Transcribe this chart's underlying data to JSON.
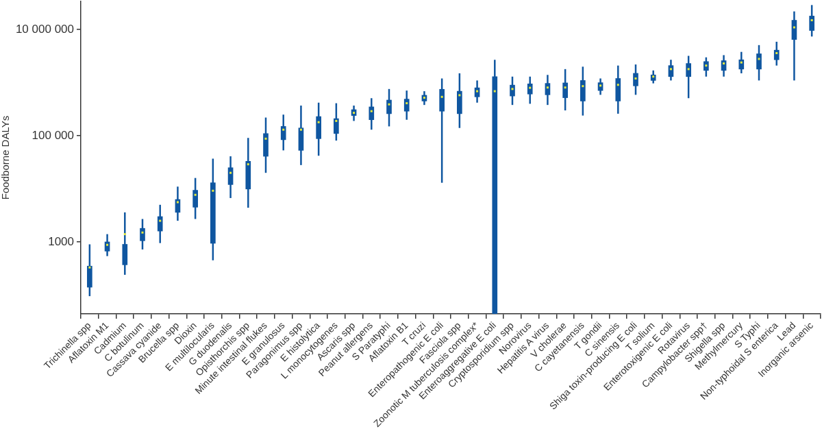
{
  "chart_data": {
    "type": "box",
    "ylabel": "Foodborne DALYs",
    "categories": [
      "Trichinella spp",
      "Aflatoxin M1",
      "Cadmium",
      "C botulinum",
      "Cassava cyanide",
      "Brucella spp",
      "Dioxin",
      "E multilocularis",
      "G duodenalis",
      "Opisthorchis spp",
      "Minute intestinal flukes",
      "E granulosus",
      "Paragonimus spp",
      "E histolytica",
      "L monocytogenes",
      "Ascaris spp",
      "Peanut allergens",
      "S Paratyphi",
      "Aflatoxin B1",
      "T cruzi",
      "Enteropathogenic E coli",
      "Fasciola spp",
      "Zoonotic M tuberculosis complex*",
      "Enteroaggregative E coli",
      "Cryptosporidium spp",
      "Norovirus",
      "Hepatitis A virus",
      "V cholerae",
      "C cayetanensis",
      "T gondii",
      "C sinensis",
      "Shiga toxin-producing E coli",
      "T solium",
      "Enterotoxigenic E coli",
      "Rotavirus",
      "Campylobacter spp†",
      "Shigella spp",
      "Methylmercury",
      "S Typhi",
      "Non-typhoidal S enterica",
      "Lead",
      "Inorganic arsenic"
    ],
    "series": [
      {
        "color": "#0f56a0",
        "boxes": [
          {
            "low": 95,
            "q1": 140,
            "median": 330,
            "q3": 350,
            "high": 900
          },
          {
            "low": 540,
            "q1": 670,
            "median": 880,
            "q3": 1000,
            "high": 1400
          },
          {
            "low": 240,
            "q1": 370,
            "median": 1400,
            "q3": 900,
            "high": 3600
          },
          {
            "low": 720,
            "q1": 1050,
            "median": 1500,
            "q3": 1800,
            "high": 2700
          },
          {
            "low": 950,
            "q1": 1600,
            "median": 2500,
            "q3": 3000,
            "high": 5000
          },
          {
            "low": 2500,
            "q1": 3600,
            "median": 5600,
            "q3": 6300,
            "high": 11000
          },
          {
            "low": 2700,
            "q1": 4500,
            "median": 7700,
            "q3": 9400,
            "high": 16000
          },
          {
            "low": 450,
            "q1": 940,
            "median": 9200,
            "q3": 13000,
            "high": 37000
          },
          {
            "low": 6700,
            "q1": 12000,
            "median": 20000,
            "q3": 25000,
            "high": 41000
          },
          {
            "low": 4400,
            "q1": 9900,
            "median": 29000,
            "q3": 33000,
            "high": 91000
          },
          {
            "low": 20000,
            "q1": 41000,
            "median": 88000,
            "q3": 110000,
            "high": 220000
          },
          {
            "low": 53000,
            "q1": 84000,
            "median": 130000,
            "q3": 150000,
            "high": 250000
          },
          {
            "low": 28000,
            "q1": 53000,
            "median": 130000,
            "q3": 140000,
            "high": 370000
          },
          {
            "low": 42000,
            "q1": 88000,
            "median": 180000,
            "q3": 230000,
            "high": 420000
          },
          {
            "low": 81000,
            "q1": 110000,
            "median": 190000,
            "q3": 210000,
            "high": 410000
          },
          {
            "low": 190000,
            "q1": 240000,
            "median": 270000,
            "q3": 310000,
            "high": 370000
          },
          {
            "low": 130000,
            "q1": 200000,
            "median": 290000,
            "q3": 350000,
            "high": 510000
          },
          {
            "low": 150000,
            "q1": 260000,
            "median": 390000,
            "q3": 470000,
            "high": 760000
          },
          {
            "low": 200000,
            "q1": 290000,
            "median": 410000,
            "q3": 490000,
            "high": 710000
          },
          {
            "low": 380000,
            "q1": 450000,
            "median": 520000,
            "q3": 580000,
            "high": 690000
          },
          {
            "low": 13000,
            "q1": 290000,
            "median": 540000,
            "q3": 750000,
            "high": 1200000
          },
          {
            "low": 140000,
            "q1": 260000,
            "median": 580000,
            "q3": 690000,
            "high": 1500000
          },
          {
            "low": 420000,
            "q1": 540000,
            "median": 690000,
            "q3": 800000,
            "high": 1100000
          },
          {
            "low": 44,
            "q1": 44,
            "median": 690000,
            "q3": 1300000,
            "high": 2700000
          },
          {
            "low": 380000,
            "q1": 560000,
            "median": 760000,
            "q3": 900000,
            "high": 1300000
          },
          {
            "low": 400000,
            "q1": 610000,
            "median": 800000,
            "q3": 950000,
            "high": 1300000
          },
          {
            "low": 380000,
            "q1": 590000,
            "median": 810000,
            "q3": 970000,
            "high": 1400000
          },
          {
            "low": 300000,
            "q1": 520000,
            "median": 810000,
            "q3": 990000,
            "high": 1800000
          },
          {
            "low": 240000,
            "q1": 450000,
            "median": 860000,
            "q3": 1100000,
            "high": 2000000
          },
          {
            "low": 590000,
            "q1": 710000,
            "median": 880000,
            "q3": 1000000,
            "high": 1200000
          },
          {
            "low": 260000,
            "q1": 450000,
            "median": 910000,
            "q3": 1200000,
            "high": 2100000
          },
          {
            "low": 590000,
            "q1": 870000,
            "median": 1200000,
            "q3": 1500000,
            "high": 2200000
          },
          {
            "low": 970000,
            "q1": 1100000,
            "median": 1300000,
            "q3": 1400000,
            "high": 1700000
          },
          {
            "low": 1100000,
            "q1": 1300000,
            "median": 1800000,
            "q3": 2100000,
            "high": 2700000
          },
          {
            "low": 510000,
            "q1": 1300000,
            "median": 1800000,
            "q3": 2300000,
            "high": 3200000
          },
          {
            "low": 1300000,
            "q1": 1700000,
            "median": 2100000,
            "q3": 2500000,
            "high": 3000000
          },
          {
            "low": 1300000,
            "q1": 1700000,
            "median": 2300000,
            "q3": 2600000,
            "high": 3300000
          },
          {
            "low": 1500000,
            "q1": 1800000,
            "median": 2400000,
            "q3": 2700000,
            "high": 3800000
          },
          {
            "low": 1100000,
            "q1": 1800000,
            "median": 2800000,
            "q3": 3500000,
            "high": 5100000
          },
          {
            "low": 2100000,
            "q1": 2700000,
            "median": 3600000,
            "q3": 4100000,
            "high": 5900000
          },
          {
            "low": 1100000,
            "q1": 6500000,
            "median": 11000000,
            "q3": 15000000,
            "high": 22000000
          },
          {
            "low": 7400000,
            "q1": 9600000,
            "median": 15000000,
            "q3": 18000000,
            "high": 29000000
          }
        ]
      }
    ],
    "log": true,
    "ylim": [
      44,
      34000000
    ],
    "yticks": [
      1000,
      {
        "value": 100000,
        "label": "100 000"
      },
      {
        "value": 10000000,
        "label": "10 000 000"
      }
    ]
  }
}
